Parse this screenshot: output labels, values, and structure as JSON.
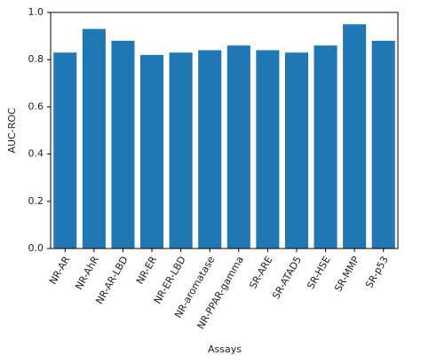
{
  "chart_data": {
    "type": "bar",
    "x_label": "Assays",
    "y_label": "AUC-ROC",
    "categories": [
      "NR-AR",
      "NR-AhR",
      "NR-AR-LBD",
      "NR-ER",
      "NR-ER-LBD",
      "NR-aromatase",
      "NR-PPAR-gamma",
      "SR-ARE",
      "SR-ATAD5",
      "SR-HSE",
      "SR-MMP",
      "SR-p53"
    ],
    "values": [
      0.83,
      0.93,
      0.88,
      0.82,
      0.83,
      0.84,
      0.86,
      0.84,
      0.83,
      0.86,
      0.95,
      0.88
    ],
    "color": "#1f77b4",
    "ylim": [
      0,
      1
    ],
    "yticks": [
      {
        "value": 0,
        "label": "0.0"
      },
      0.2,
      0.4,
      0.6,
      0.8,
      {
        "value": 1,
        "label": "1.0"
      }
    ],
    "grid": false
  }
}
